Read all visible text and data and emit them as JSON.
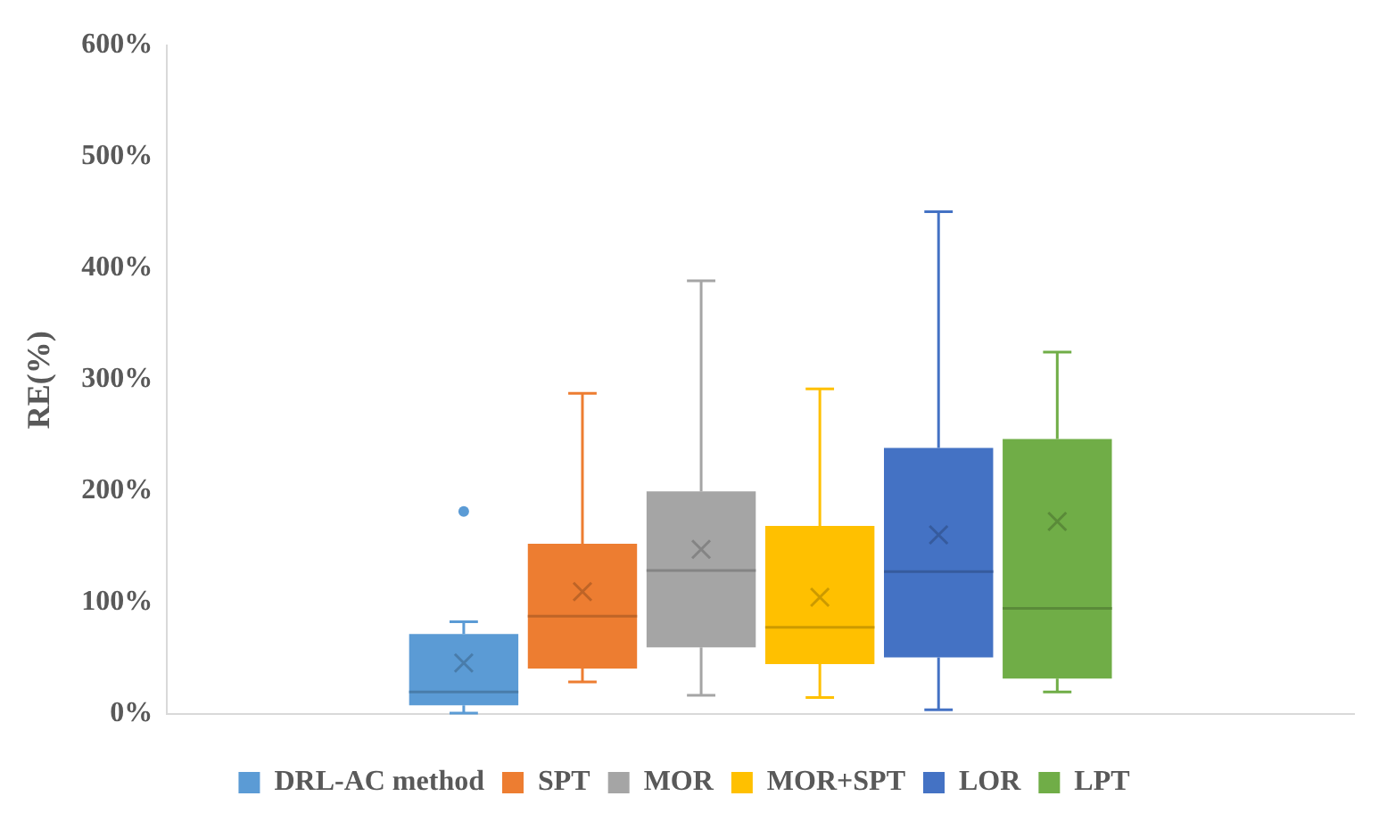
{
  "chart_data": {
    "type": "box",
    "categories": [
      null
    ],
    "ylabel": "RE(%)",
    "ylim": [
      0,
      600
    ],
    "yticks": [
      {
        "value": 0,
        "label": "0%"
      },
      {
        "value": 100,
        "label": "100%"
      },
      {
        "value": 200,
        "label": "200%"
      },
      {
        "value": 300,
        "label": "300%"
      },
      {
        "value": 400,
        "label": "400%"
      },
      {
        "value": 500,
        "label": "500%"
      },
      {
        "value": 600,
        "label": "600%"
      }
    ],
    "grid": false,
    "legend": "bottom",
    "marker": "cross",
    "series": [
      {
        "name": "DRL-AC method",
        "color": "#5b9bd5",
        "boxes": [
          {
            "low": 1,
            "q1": 8,
            "median": 20,
            "q3": 72,
            "high": 83,
            "mean": 46,
            "outliers": [
              182
            ]
          }
        ]
      },
      {
        "name": "SPT",
        "color": "#ed7d31",
        "boxes": [
          {
            "low": 29,
            "q1": 41,
            "median": 88,
            "q3": 153,
            "high": 288,
            "mean": 110
          }
        ]
      },
      {
        "name": "MOR",
        "color": "#a5a5a5",
        "boxes": [
          {
            "low": 17,
            "q1": 60,
            "median": 129,
            "q3": 200,
            "high": 389,
            "mean": 148
          }
        ]
      },
      {
        "name": "MOR+SPT",
        "color": "#ffc000",
        "boxes": [
          {
            "low": 15,
            "q1": 45,
            "median": 78,
            "q3": 169,
            "high": 292,
            "mean": 105
          }
        ]
      },
      {
        "name": "LOR",
        "color": "#4472c4",
        "boxes": [
          {
            "low": 4,
            "q1": 51,
            "median": 128,
            "q3": 239,
            "high": 451,
            "mean": 161
          }
        ]
      },
      {
        "name": "LPT",
        "color": "#70ad47",
        "boxes": [
          {
            "low": 20,
            "q1": 32,
            "median": 95,
            "q3": 247,
            "high": 325,
            "mean": 173
          }
        ]
      }
    ]
  }
}
